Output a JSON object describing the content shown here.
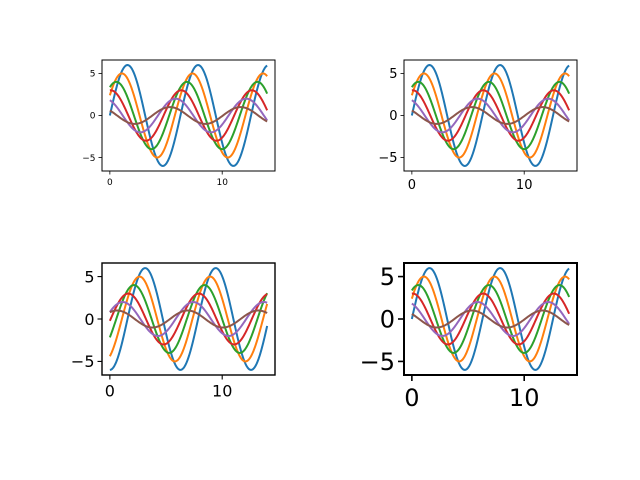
{
  "figure": {
    "background": "#ffffff"
  },
  "series_colors": [
    "#1f77b4",
    "#ff7f0e",
    "#2ca02c",
    "#d62728",
    "#9467bd",
    "#8c564b"
  ],
  "chart_data": [
    {
      "type": "line",
      "position": "top-left",
      "title": "",
      "xlabel": "",
      "ylabel": "",
      "xlim": [
        -0.7,
        14.7
      ],
      "ylim": [
        -6.6,
        6.6
      ],
      "xticks": [
        0,
        10
      ],
      "yticks": [
        -5,
        0,
        5
      ],
      "grid": false,
      "x": [
        0,
        14
      ],
      "series": [
        {
          "function": "6*sin(x+0)",
          "amplitude": 6,
          "phase": 0,
          "color": "#1f77b4"
        },
        {
          "function": "5*sin(x+0.5)",
          "amplitude": 5,
          "phase": 0.5,
          "color": "#ff7f0e"
        },
        {
          "function": "4*sin(x+1)",
          "amplitude": 4,
          "phase": 1,
          "color": "#2ca02c"
        },
        {
          "function": "3*sin(x+1.5)",
          "amplitude": 3,
          "phase": 1.5,
          "color": "#d62728"
        },
        {
          "function": "2*sin(x+2)",
          "amplitude": 2,
          "phase": 2,
          "color": "#9467bd"
        },
        {
          "function": "1*sin(x+2.5)",
          "amplitude": 1,
          "phase": 2.5,
          "color": "#8c564b"
        }
      ]
    },
    {
      "type": "line",
      "position": "top-right",
      "title": "",
      "xlabel": "",
      "ylabel": "",
      "xlim": [
        -0.7,
        14.7
      ],
      "ylim": [
        -6.6,
        6.6
      ],
      "xticks": [
        0,
        10
      ],
      "yticks": [
        -5,
        0,
        5
      ],
      "grid": false,
      "x": [
        0,
        14
      ],
      "series": [
        {
          "function": "6*sin(x+0)",
          "amplitude": 6,
          "phase": 0,
          "color": "#1f77b4"
        },
        {
          "function": "5*sin(x+0.5)",
          "amplitude": 5,
          "phase": 0.5,
          "color": "#ff7f0e"
        },
        {
          "function": "4*sin(x+1)",
          "amplitude": 4,
          "phase": 1,
          "color": "#2ca02c"
        },
        {
          "function": "3*sin(x+1.5)",
          "amplitude": 3,
          "phase": 1.5,
          "color": "#d62728"
        },
        {
          "function": "2*sin(x+2)",
          "amplitude": 2,
          "phase": 2,
          "color": "#9467bd"
        },
        {
          "function": "1*sin(x+2.5)",
          "amplitude": 1,
          "phase": 2.5,
          "color": "#8c564b"
        }
      ]
    },
    {
      "type": "line",
      "position": "bottom-left",
      "title": "",
      "xlabel": "",
      "ylabel": "",
      "xlim": [
        -0.7,
        14.7
      ],
      "ylim": [
        -6.6,
        6.6
      ],
      "xticks": [
        0,
        10
      ],
      "yticks": [
        -5,
        0,
        5
      ],
      "grid": false,
      "x": [
        0,
        14
      ],
      "series": [
        {
          "function": "-6*cos(x)",
          "amplitude": 6,
          "phase": -1.5708,
          "color": "#1f77b4"
        },
        {
          "function": "-5*cos(x+0.5)",
          "amplitude": 5,
          "phase": -1.0708,
          "color": "#ff7f0e"
        },
        {
          "function": "-4*cos(x+1)",
          "amplitude": 4,
          "phase": -0.5708,
          "color": "#2ca02c"
        },
        {
          "function": "-3*cos(x+1.5)",
          "amplitude": 3,
          "phase": -0.0708,
          "color": "#d62728"
        },
        {
          "function": "-2*cos(x+2)",
          "amplitude": 2,
          "phase": 0.4292,
          "color": "#9467bd"
        },
        {
          "function": "-1*cos(x+2.5)",
          "amplitude": 1,
          "phase": 0.9292,
          "color": "#8c564b"
        }
      ]
    },
    {
      "type": "line",
      "position": "bottom-right",
      "title": "",
      "xlabel": "",
      "ylabel": "",
      "xlim": [
        -0.7,
        14.7
      ],
      "ylim": [
        -6.6,
        6.6
      ],
      "xticks": [
        0,
        10
      ],
      "yticks": [
        -5,
        0,
        5
      ],
      "grid": false,
      "x": [
        0,
        14
      ],
      "series": [
        {
          "function": "6*sin(x+0)",
          "amplitude": 6,
          "phase": 0,
          "color": "#1f77b4"
        },
        {
          "function": "5*sin(x+0.5)",
          "amplitude": 5,
          "phase": 0.5,
          "color": "#ff7f0e"
        },
        {
          "function": "4*sin(x+1)",
          "amplitude": 4,
          "phase": 1,
          "color": "#2ca02c"
        },
        {
          "function": "3*sin(x+1.5)",
          "amplitude": 3,
          "phase": 1.5,
          "color": "#d62728"
        },
        {
          "function": "2*sin(x+2)",
          "amplitude": 2,
          "phase": 2,
          "color": "#9467bd"
        },
        {
          "function": "1*sin(x+2.5)",
          "amplitude": 1,
          "phase": 2.5,
          "color": "#8c564b"
        }
      ]
    }
  ]
}
